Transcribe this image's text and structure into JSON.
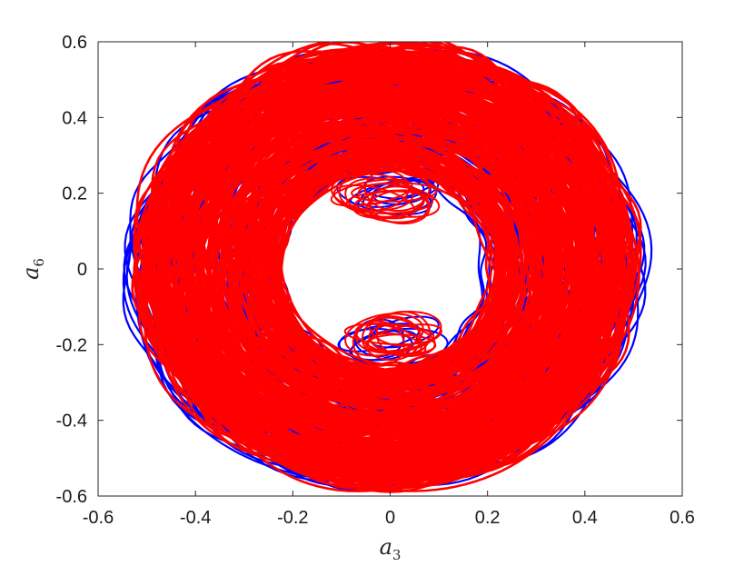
{
  "chart_data": {
    "type": "line",
    "title": "",
    "xlabel": {
      "base": "a",
      "sub": "3"
    },
    "ylabel": {
      "base": "a",
      "sub": "6"
    },
    "xlim": [
      -0.6,
      0.6
    ],
    "ylim": [
      -0.6,
      0.6
    ],
    "xticks": [
      -0.6,
      -0.4,
      -0.2,
      0,
      0.2,
      0.4,
      0.6
    ],
    "yticks": [
      -0.6,
      -0.4,
      -0.2,
      0,
      0.2,
      0.4,
      0.6
    ],
    "xtick_labels": [
      "-0.6",
      "-0.4",
      "-0.2",
      "0",
      "0.2",
      "0.4",
      "0.6"
    ],
    "ytick_labels": [
      "-0.6",
      "-0.4",
      "-0.2",
      "0",
      "0.2",
      "0.4",
      "0.6"
    ],
    "grid": false,
    "box": true,
    "series": [
      {
        "color": "#0000ff",
        "description": "phase-space trajectory",
        "ring_outer_x": [
          -0.54,
          0.52
        ],
        "ring_outer_y": [
          -0.575,
          0.58
        ],
        "ring_inner_x": [
          -0.2,
          0.18
        ],
        "ring_inner_y": [
          -0.25,
          0.25
        ],
        "inner_loops": [
          {
            "cx": 0.0,
            "cy": 0.21,
            "rx": 0.1,
            "ry": 0.05
          },
          {
            "cx": 0.0,
            "cy": -0.19,
            "rx": 0.1,
            "ry": 0.05
          }
        ]
      },
      {
        "color": "#ff0000",
        "description": "phase-space trajectory",
        "ring_outer_x": [
          -0.52,
          0.5
        ],
        "ring_outer_y": [
          -0.575,
          0.595
        ],
        "ring_inner_x": [
          -0.21,
          0.2
        ],
        "ring_inner_y": [
          -0.24,
          0.25
        ],
        "inner_loops": [
          {
            "cx": -0.01,
            "cy": 0.19,
            "rx": 0.09,
            "ry": 0.06
          },
          {
            "cx": 0.0,
            "cy": -0.18,
            "rx": 0.1,
            "ry": 0.06
          }
        ]
      }
    ]
  }
}
